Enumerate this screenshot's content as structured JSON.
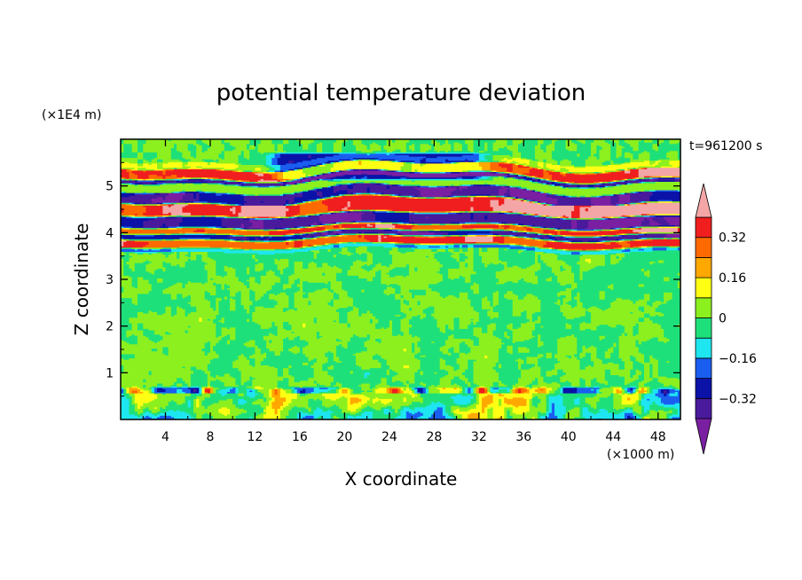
{
  "chart_data": {
    "type": "heatmap",
    "title": "potential temperature deviation",
    "xlabel": "X coordinate",
    "ylabel": "Z coordinate",
    "x_unit": "(×1000 m)",
    "y_unit": "(×1E4 m)",
    "time_label": "t=961200 s",
    "xlim": [
      0,
      50
    ],
    "ylim": [
      0,
      6
    ],
    "x_ticks": [
      4,
      8,
      12,
      16,
      20,
      24,
      28,
      32,
      36,
      40,
      44,
      48
    ],
    "x_tick_labels": [
      "4",
      "8",
      "12",
      "16",
      "20",
      "24",
      "28",
      "32",
      "36",
      "40",
      "44",
      "48"
    ],
    "y_ticks": [
      1,
      2,
      3,
      4,
      5
    ],
    "y_tick_labels": [
      "1",
      "2",
      "3",
      "4",
      "5"
    ],
    "colorbar": {
      "levels": [
        -0.4,
        -0.32,
        -0.24,
        -0.16,
        -0.08,
        0,
        0.08,
        0.16,
        0.24,
        0.32,
        0.4
      ],
      "tick_values": [
        0.32,
        0.16,
        0,
        -0.16,
        -0.32
      ],
      "tick_labels": [
        "0.32",
        "0.16",
        "0",
        "−0.16",
        "−0.32"
      ],
      "over_color": "#f4a6a6",
      "under_color": "#7a1fa2",
      "colors_low_to_high": [
        "#4a1a9c",
        "#0a12a8",
        "#1a5ef0",
        "#1ee6f0",
        "#1ee07a",
        "#8cf01e",
        "#ffff14",
        "#ffa800",
        "#ff6a00",
        "#f01e1e"
      ]
    },
    "bands": [
      {
        "z": [
          0.0,
          0.12
        ],
        "desc": "surface layer mixed (green/yellow/orange/blue eddies)"
      },
      {
        "z": [
          0.12,
          0.65
        ],
        "desc": "boundary layer eddies"
      },
      {
        "z": [
          0.65,
          3.6
        ],
        "desc": "near-neutral interior, values about -0.08 to 0.08"
      },
      {
        "z": [
          3.6,
          5.5
        ],
        "desc": "alternating strong positive and negative layers"
      },
      {
        "z": [
          5.5,
          6.0
        ],
        "desc": "near-zero upper layer"
      }
    ]
  },
  "colors": {
    "background": "#ffffff",
    "axis": "#000000"
  }
}
